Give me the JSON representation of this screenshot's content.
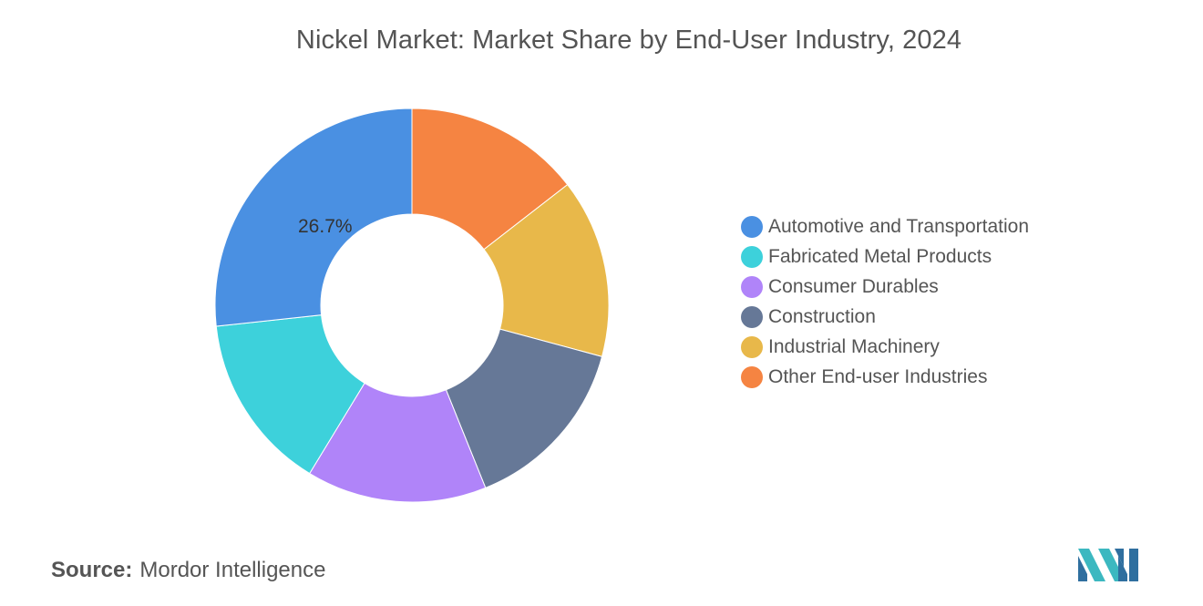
{
  "title": "Nickel Market: Market Share by End-User Industry, 2024",
  "source": {
    "label": "Source:",
    "value": "Mordor Intelligence"
  },
  "chart_data": {
    "type": "pie",
    "variant": "donut",
    "title": "Nickel Market: Market Share by End-User Industry, 2024",
    "categories": [
      "Other End-user Industries",
      "Industrial Machinery",
      "Construction",
      "Consumer Durables",
      "Fabricated Metal Products",
      "Automotive and Transportation"
    ],
    "values": [
      14.5,
      14.7,
      14.7,
      14.8,
      14.6,
      26.7
    ],
    "colors": [
      "#f58442",
      "#e8b84a",
      "#667897",
      "#b084f9",
      "#3dd1db",
      "#4a90e2"
    ],
    "data_labels": [
      {
        "category": "Automotive and Transportation",
        "text": "26.7%"
      }
    ],
    "legend": {
      "position": "right",
      "items": [
        {
          "label": "Automotive and Transportation",
          "color": "#4a90e2"
        },
        {
          "label": "Fabricated Metal Products",
          "color": "#3dd1db"
        },
        {
          "label": "Consumer Durables",
          "color": "#b084f9"
        },
        {
          "label": "Construction",
          "color": "#667897"
        },
        {
          "label": "Industrial Machinery",
          "color": "#e8b84a"
        },
        {
          "label": "Other End-user Industries",
          "color": "#f58442"
        }
      ]
    }
  },
  "logo": {
    "name": "mordor-intelligence-logo",
    "colors": [
      "#2f6f9f",
      "#3cb8c0"
    ]
  }
}
